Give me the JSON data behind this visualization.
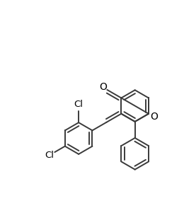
{
  "background": "#ffffff",
  "bond_color": "#3a3a3a",
  "line_width": 1.4,
  "figsize": [
    2.6,
    3.11
  ],
  "dpi": 100,
  "xlim": [
    0.0,
    6.5
  ],
  "ylim": [
    0.0,
    7.8
  ]
}
